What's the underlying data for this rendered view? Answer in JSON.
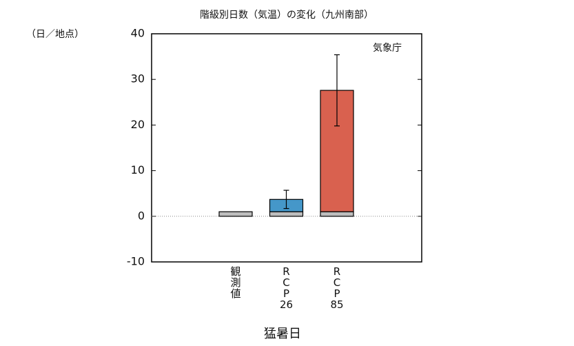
{
  "chart_data": {
    "type": "bar",
    "title": "階級別日数（気温）の変化（九州南部）",
    "y_unit": "（日／地点）",
    "annotation": "気象庁",
    "xlabel": "猛暑日",
    "categories": [
      "観測値",
      "RCP26",
      "RCP85"
    ],
    "stacked": true,
    "series": [
      {
        "colors": [
          "#bdbdbd",
          "#bdbdbd",
          "#bdbdbd"
        ],
        "values": [
          1.0,
          1.0,
          1.0
        ]
      },
      {
        "colors": [
          null,
          "#4597c9",
          "#d9614f"
        ],
        "values": [
          null,
          2.7,
          26.6
        ],
        "errors": [
          null,
          2.0,
          7.8
        ]
      }
    ],
    "ylim": [
      -10,
      40
    ],
    "yticks": [
      -10,
      0,
      10,
      20,
      30,
      40
    ],
    "zero_line": true
  }
}
